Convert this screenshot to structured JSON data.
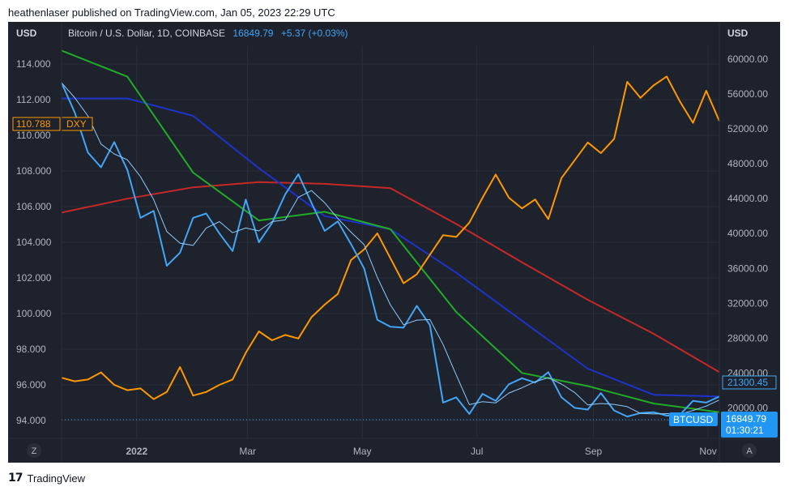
{
  "publisher_line": "heathenlaser published on TradingView.com, Jan 05, 2023 22:29 UTC",
  "brand": {
    "logo": "17",
    "name": "TradingView"
  },
  "colors": {
    "background": "#1e222d",
    "btc": "#42a5f5",
    "btc_ma_short": "#90caf9",
    "dxy": "#ff9800",
    "ma_green": "#22ab28",
    "ma_blue": "#1d33c9",
    "ma_red": "#c62828"
  },
  "header": {
    "left_axis_unit": "USD",
    "right_axis_unit": "USD",
    "symbol": "Bitcoin / U.S. Dollar, 1D, COINBASE",
    "last_price": "16849.79",
    "change": "+5.37 (+0.03%)"
  },
  "badges": {
    "dxy_value": "110.788",
    "dxy_label": "DXY",
    "ma_value": "21300.45",
    "btc_label": "BTCUSD",
    "btc_value": "16849.79",
    "btc_countdown": "01:30:21"
  },
  "footer": {
    "left_button": "Z",
    "right_button": "A"
  },
  "chart_data": {
    "type": "line",
    "x_axis": {
      "start": "2021-11-22",
      "end": "2022-11-07",
      "tick_labels": [
        "2022",
        "Mar",
        "May",
        "Jul",
        "Sep",
        "Nov"
      ],
      "tick_dates": [
        "2022-01-01",
        "2022-03-01",
        "2022-05-01",
        "2022-07-01",
        "2022-09-01",
        "2022-11-01"
      ]
    },
    "left_axis": {
      "name": "DXY",
      "ylim": [
        93.0,
        115.0
      ],
      "ticks": [
        "94.000",
        "96.000",
        "98.000",
        "100.000",
        "102.000",
        "104.000",
        "106.000",
        "108.000",
        "110.000",
        "112.000",
        "114.000"
      ]
    },
    "right_axis": {
      "name": "BTCUSD",
      "ylim": [
        16500,
        61500
      ],
      "ticks": [
        "20000.00",
        "24000.00",
        "28000.00",
        "32000.00",
        "36000.00",
        "40000.00",
        "44000.00",
        "48000.00",
        "52000.00",
        "56000.00",
        "60000.00"
      ]
    },
    "series": [
      {
        "name": "BTCUSD",
        "axis": "right",
        "x": [
          "2021-11-22",
          "2021-11-29",
          "2021-12-06",
          "2021-12-13",
          "2021-12-20",
          "2021-12-27",
          "2022-01-03",
          "2022-01-10",
          "2022-01-17",
          "2022-01-24",
          "2022-01-31",
          "2022-02-07",
          "2022-02-14",
          "2022-02-21",
          "2022-02-28",
          "2022-03-07",
          "2022-03-14",
          "2022-03-21",
          "2022-03-28",
          "2022-04-04",
          "2022-04-11",
          "2022-04-18",
          "2022-04-25",
          "2022-05-02",
          "2022-05-09",
          "2022-05-16",
          "2022-05-23",
          "2022-05-30",
          "2022-06-06",
          "2022-06-13",
          "2022-06-20",
          "2022-06-27",
          "2022-07-04",
          "2022-07-11",
          "2022-07-18",
          "2022-07-25",
          "2022-08-01",
          "2022-08-08",
          "2022-08-15",
          "2022-08-22",
          "2022-08-29",
          "2022-09-05",
          "2022-09-12",
          "2022-09-19",
          "2022-09-26",
          "2022-10-03",
          "2022-10-10",
          "2022-10-17",
          "2022-10-24",
          "2022-10-31",
          "2022-11-07"
        ],
        "values": [
          57300,
          53900,
          49300,
          47600,
          50500,
          47300,
          41800,
          42600,
          36300,
          37800,
          41800,
          42300,
          40000,
          38000,
          43900,
          39000,
          41200,
          44500,
          46800,
          43500,
          40300,
          41400,
          38800,
          36000,
          30100,
          29300,
          29200,
          31700,
          29500,
          20600,
          21200,
          19300,
          21600,
          20800,
          22700,
          23400,
          22900,
          24100,
          21200,
          20000,
          19800,
          21700,
          19700,
          19000,
          19400,
          19500,
          19100,
          19200,
          20800,
          20600,
          21300
        ]
      },
      {
        "name": "DXY",
        "axis": "left",
        "x": [
          "2021-11-22",
          "2021-11-29",
          "2021-12-06",
          "2021-12-13",
          "2021-12-20",
          "2021-12-27",
          "2022-01-03",
          "2022-01-10",
          "2022-01-17",
          "2022-01-24",
          "2022-01-31",
          "2022-02-07",
          "2022-02-14",
          "2022-02-21",
          "2022-02-28",
          "2022-03-07",
          "2022-03-14",
          "2022-03-21",
          "2022-03-28",
          "2022-04-04",
          "2022-04-11",
          "2022-04-18",
          "2022-04-25",
          "2022-05-02",
          "2022-05-09",
          "2022-05-16",
          "2022-05-23",
          "2022-05-30",
          "2022-06-06",
          "2022-06-13",
          "2022-06-20",
          "2022-06-27",
          "2022-07-04",
          "2022-07-11",
          "2022-07-18",
          "2022-07-25",
          "2022-08-01",
          "2022-08-08",
          "2022-08-15",
          "2022-08-22",
          "2022-08-29",
          "2022-09-05",
          "2022-09-12",
          "2022-09-19",
          "2022-09-26",
          "2022-10-03",
          "2022-10-10",
          "2022-10-17",
          "2022-10-24",
          "2022-10-31",
          "2022-11-07"
        ],
        "values": [
          96.4,
          96.2,
          96.3,
          96.7,
          96.0,
          95.7,
          95.8,
          95.2,
          95.6,
          97.0,
          95.4,
          95.6,
          96.0,
          96.3,
          97.8,
          99.0,
          98.5,
          98.8,
          98.6,
          99.8,
          100.5,
          101.1,
          103.0,
          103.6,
          104.5,
          103.1,
          101.7,
          102.2,
          103.3,
          104.4,
          104.3,
          105.1,
          106.5,
          107.8,
          106.5,
          105.9,
          106.4,
          105.3,
          107.6,
          108.6,
          109.6,
          109.0,
          109.8,
          113.0,
          112.1,
          112.8,
          113.3,
          111.9,
          110.7,
          112.5,
          110.8
        ]
      },
      {
        "name": "",
        "axis": "right",
        "x": [
          "2021-11-22",
          "2021-12-27",
          "2022-01-31",
          "2022-03-07",
          "2022-04-11",
          "2022-05-16",
          "2022-06-20",
          "2022-07-25",
          "2022-08-29",
          "2022-10-03",
          "2022-11-07"
        ],
        "values": [
          61000,
          58000,
          47000,
          41500,
          42500,
          40500,
          31000,
          24000,
          22500,
          20500,
          19500
        ]
      },
      {
        "name": "",
        "axis": "right",
        "x": [
          "2021-11-22",
          "2021-12-27",
          "2022-01-31",
          "2022-03-07",
          "2022-04-11",
          "2022-05-16",
          "2022-06-20",
          "2022-07-25",
          "2022-08-29",
          "2022-10-03",
          "2022-11-07"
        ],
        "values": [
          55500,
          55500,
          53500,
          47500,
          42000,
          40500,
          35500,
          30000,
          24500,
          21500,
          21300
        ]
      },
      {
        "name": "",
        "axis": "right",
        "x": [
          "2021-11-22",
          "2021-12-27",
          "2022-01-31",
          "2022-03-07",
          "2022-04-11",
          "2022-05-16",
          "2022-06-20",
          "2022-07-25",
          "2022-08-29",
          "2022-10-03",
          "2022-11-07"
        ],
        "values": [
          42400,
          44000,
          45300,
          45900,
          45700,
          45200,
          41100,
          36700,
          32400,
          28500,
          24100
        ]
      }
    ]
  }
}
